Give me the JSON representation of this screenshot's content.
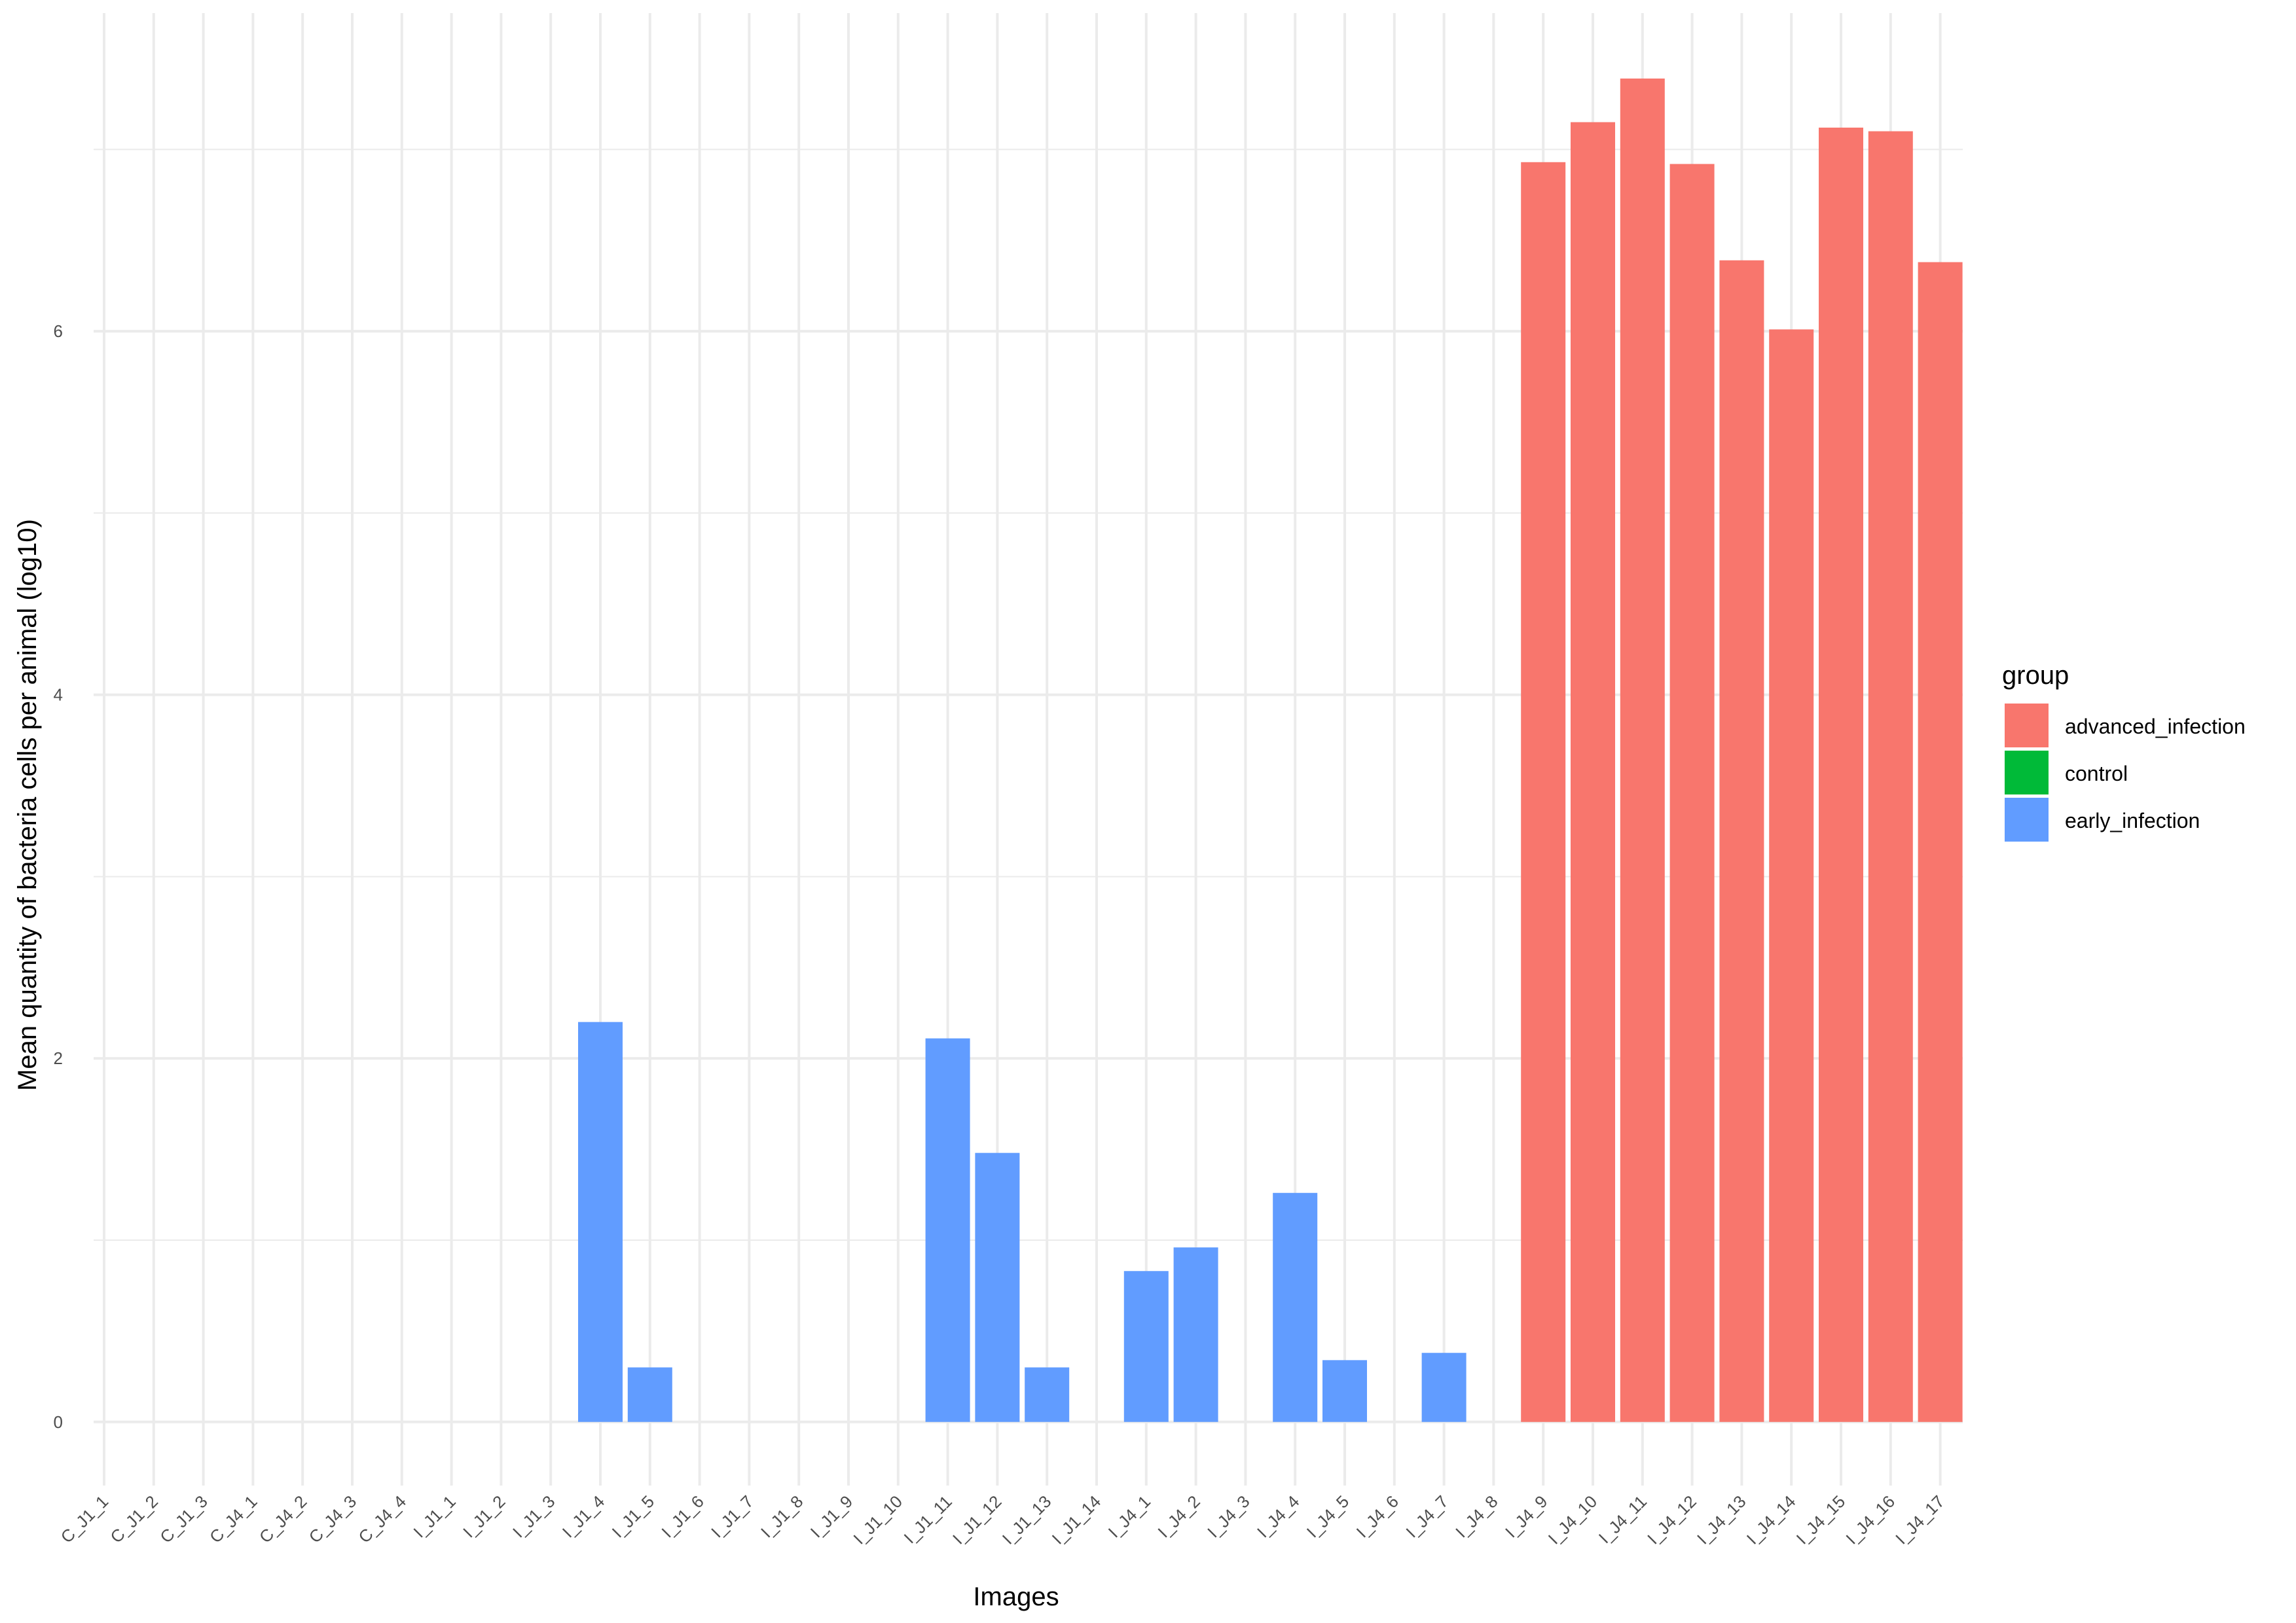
{
  "chart_data": {
    "type": "bar",
    "xlabel": "Images",
    "ylabel": "Mean quantity of bacteria cells per animal (log10)",
    "ylim": [
      -0.35,
      7.75
    ],
    "yticks": [
      0,
      2,
      4,
      6
    ],
    "grid": true,
    "legend": {
      "title": "group",
      "position": "right",
      "entries": [
        {
          "name": "advanced_infection",
          "color": "#F8766D"
        },
        {
          "name": "control",
          "color": "#00BA38"
        },
        {
          "name": "early_infection",
          "color": "#619CFF"
        }
      ]
    },
    "categories": [
      "C_J1_1",
      "C_J1_2",
      "C_J1_3",
      "C_J4_1",
      "C_J4_2",
      "C_J4_3",
      "C_J4_4",
      "I_J1_1",
      "I_J1_2",
      "I_J1_3",
      "I_J1_4",
      "I_J1_5",
      "I_J1_6",
      "I_J1_7",
      "I_J1_8",
      "I_J1_9",
      "I_J1_10",
      "I_J1_11",
      "I_J1_12",
      "I_J1_13",
      "I_J1_14",
      "I_J4_1",
      "I_J4_2",
      "I_J4_3",
      "I_J4_4",
      "I_J4_5",
      "I_J4_6",
      "I_J4_7",
      "I_J4_8",
      "I_J4_9",
      "I_J4_10",
      "I_J4_11",
      "I_J4_12",
      "I_J4_13",
      "I_J4_14",
      "I_J4_15",
      "I_J4_16",
      "I_J4_17"
    ],
    "values": [
      0,
      0,
      0,
      0,
      0,
      0,
      0,
      0,
      0,
      0,
      2.2,
      0.3,
      0,
      0,
      0,
      0,
      0,
      2.11,
      1.48,
      0.3,
      0,
      0.83,
      0.96,
      0,
      1.26,
      0.34,
      0,
      0.38,
      0,
      6.93,
      7.15,
      7.39,
      6.92,
      6.39,
      6.01,
      7.12,
      7.1,
      6.38
    ],
    "groups": [
      "control",
      "control",
      "control",
      "control",
      "control",
      "control",
      "control",
      "early_infection",
      "early_infection",
      "early_infection",
      "early_infection",
      "early_infection",
      "early_infection",
      "early_infection",
      "early_infection",
      "early_infection",
      "early_infection",
      "early_infection",
      "early_infection",
      "early_infection",
      "early_infection",
      "early_infection",
      "early_infection",
      "early_infection",
      "early_infection",
      "early_infection",
      "early_infection",
      "early_infection",
      "early_infection",
      "advanced_infection",
      "advanced_infection",
      "advanced_infection",
      "advanced_infection",
      "advanced_infection",
      "advanced_infection",
      "advanced_infection",
      "advanced_infection",
      "advanced_infection"
    ]
  }
}
